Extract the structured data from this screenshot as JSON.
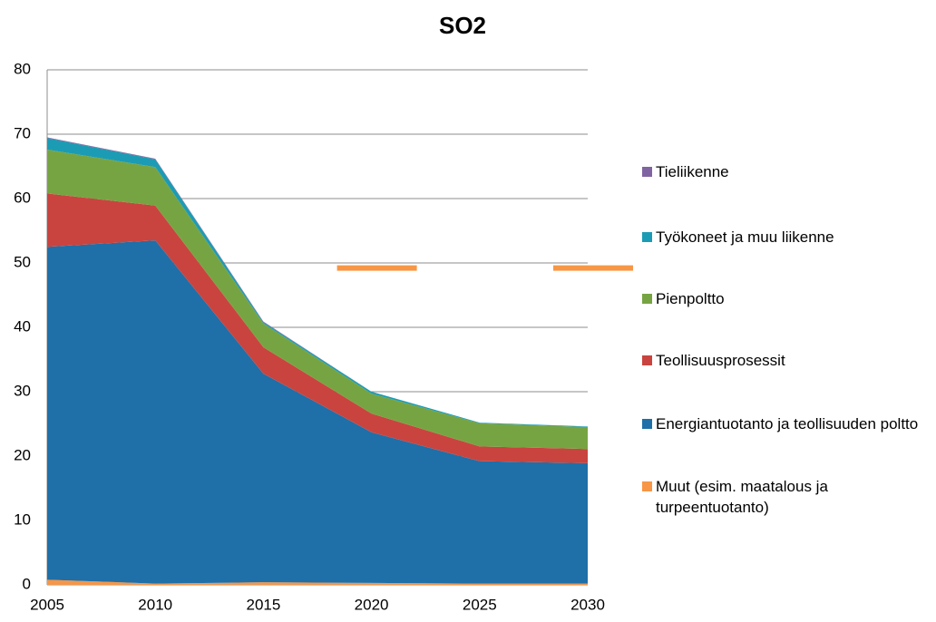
{
  "chart_data": {
    "type": "area",
    "stacked": true,
    "title": "SO2",
    "x": [
      2005,
      2010,
      2015,
      2020,
      2025,
      2030
    ],
    "xlim": [
      2005,
      2030
    ],
    "xticks": [
      2005,
      2010,
      2015,
      2020,
      2025,
      2030
    ],
    "ylim": [
      0,
      80
    ],
    "yticks": [
      0,
      10,
      20,
      30,
      40,
      50,
      60,
      70,
      80
    ],
    "grid": true,
    "legend": "right",
    "series": [
      {
        "name": "Muut (esim. maatalous ja turpeentuotanto)",
        "color": "#f79646",
        "values": [
          0.8,
          0.2,
          0.4,
          0.3,
          0.2,
          0.2
        ]
      },
      {
        "name": "Energiantuotanto ja teollisuuden poltto",
        "color": "#1f6fa8",
        "values": [
          51.7,
          53.3,
          32.4,
          23.4,
          19.0,
          18.7
        ]
      },
      {
        "name": "Teollisuusprosessit",
        "color": "#c9443f",
        "values": [
          8.3,
          5.4,
          4.1,
          2.9,
          2.3,
          2.2
        ]
      },
      {
        "name": "Pienpoltto",
        "color": "#77a443",
        "values": [
          6.8,
          6.0,
          3.7,
          3.1,
          3.6,
          3.4
        ]
      },
      {
        "name": "Työkoneet ja muu liikenne",
        "color": "#1b9cb4",
        "values": [
          1.8,
          1.2,
          0.2,
          0.3,
          0.1,
          0.1
        ]
      },
      {
        "name": "Tieliikenne",
        "color": "#8064a2",
        "values": [
          0.1,
          0.1,
          0.1,
          0.0,
          0.0,
          0.0
        ]
      }
    ],
    "markers": {
      "color": "#f79646",
      "x": [
        2020,
        2030
      ],
      "values": [
        49.2,
        49.2
      ]
    }
  }
}
